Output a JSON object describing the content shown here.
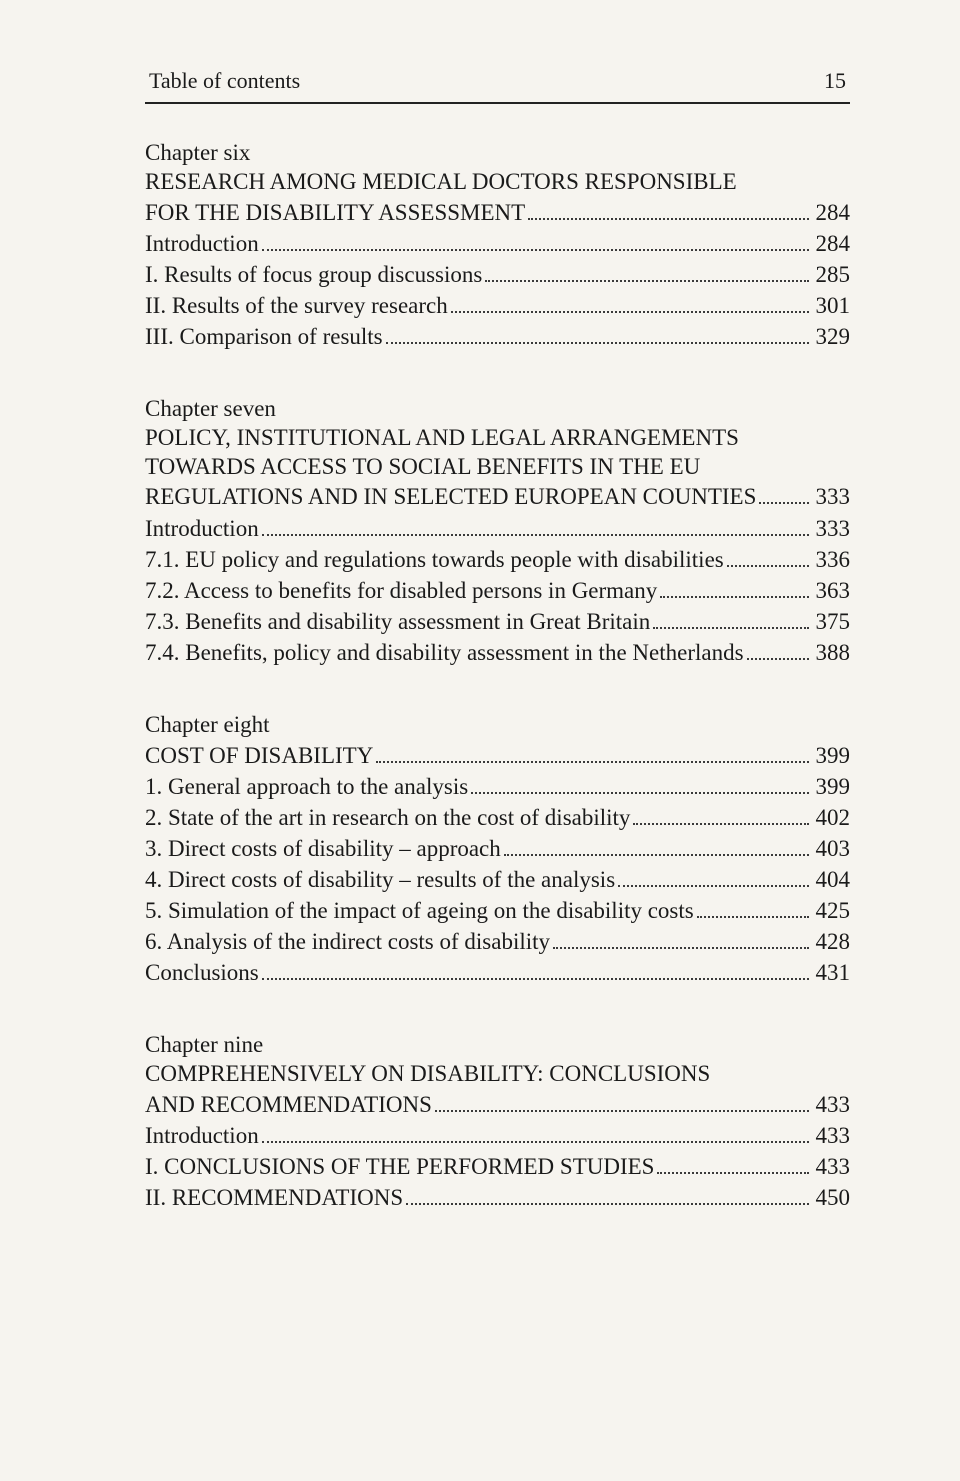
{
  "header": {
    "title": "Table of contents",
    "page_number": "15"
  },
  "chapters": {
    "six": {
      "label": "Chapter six",
      "title_line1": "RESEARCH AMONG MEDICAL DOCTORS RESPONSIBLE",
      "title_line2_lead": "FOR THE DISABILITY ASSESSMENT",
      "title_pg": "284",
      "entries": {
        "intro_lead": "Introduction",
        "intro_pg": "284",
        "i_lead": "I. Results of focus group discussions",
        "i_pg": "285",
        "ii_lead": "II. Results of the survey research",
        "ii_pg": "301",
        "iii_lead": "III. Comparison of results",
        "iii_pg": "329"
      }
    },
    "seven": {
      "label": "Chapter seven",
      "title_line1": "POLICY, INSTITUTIONAL AND LEGAL ARRANGEMENTS",
      "title_line2": "TOWARDS ACCESS TO SOCIAL BENEFITS IN THE EU",
      "title_line3_lead": "REGULATIONS AND IN SELECTED EUROPEAN COUNTIES",
      "title_pg": "333",
      "entries": {
        "intro_lead": "Introduction",
        "intro_pg": "333",
        "e71_lead": "7.1. EU policy and regulations towards people with disabilities",
        "e71_pg": "336",
        "e72_lead": "7.2. Access to benefits for disabled persons in Germany",
        "e72_pg": "363",
        "e73_lead": "7.3. Benefits and disability assessment in Great Britain",
        "e73_pg": "375",
        "e74_lead": "7.4. Benefits, policy and disability assessment in the Netherlands",
        "e74_pg": "388"
      }
    },
    "eight": {
      "label": "Chapter eight",
      "title_lead": "COST OF DISABILITY",
      "title_pg": "399",
      "entries": {
        "e1_lead": "1. General approach to the analysis",
        "e1_pg": "399",
        "e2_lead": "2. State of the art in research on the cost of disability",
        "e2_pg": "402",
        "e3_lead": "3. Direct costs of disability – approach",
        "e3_pg": "403",
        "e4_lead": "4. Direct costs of disability – results of the analysis",
        "e4_pg": "404",
        "e5_lead": "5. Simulation of the impact of ageing on the disability costs",
        "e5_pg": "425",
        "e6_lead": "6. Analysis of the indirect costs of disability",
        "e6_pg": "428",
        "concl_lead": "Conclusions",
        "concl_pg": "431"
      }
    },
    "nine": {
      "label": "Chapter nine",
      "title_line1": "COMPREHENSIVELY ON DISABILITY: CONCLUSIONS",
      "title_line2_lead": "AND RECOMMENDATIONS",
      "title_pg": "433",
      "entries": {
        "intro_lead": "Introduction",
        "intro_pg": "433",
        "i_lead": "I. CONCLUSIONS OF THE PERFORMED STUDIES",
        "i_pg": "433",
        "ii_lead": "II. RECOMMENDATIONS",
        "ii_pg": "450"
      }
    }
  }
}
